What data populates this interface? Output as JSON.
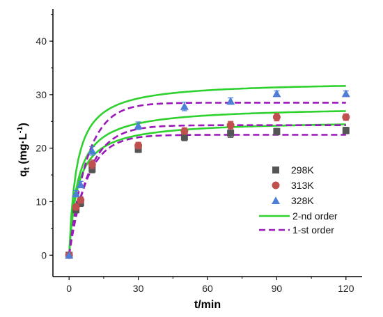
{
  "chart_data": {
    "type": "scatter",
    "xlabel": "t/min",
    "ylabel": {
      "main": "q",
      "sub": "t",
      "unit_pre": " (mg·L",
      "unit_sup": "-1",
      "unit_post": ")"
    },
    "xlim": [
      -7,
      127
    ],
    "ylim": [
      -4,
      46
    ],
    "xticks": [
      0,
      30,
      60,
      90,
      120
    ],
    "yticks": [
      0,
      10,
      20,
      30,
      40
    ],
    "legend_position": "center-right",
    "series": [
      {
        "name": "298K",
        "marker": "square",
        "color": "#555555",
        "x": [
          0,
          3,
          5,
          10,
          30,
          50,
          70,
          90,
          120
        ],
        "y": [
          0,
          8.5,
          9.8,
          16.1,
          19.8,
          22.1,
          22.8,
          23.1,
          23.3
        ],
        "err": [
          0,
          0.6,
          0.7,
          0.7,
          0.6,
          0.7,
          0.8,
          0.6,
          0.6
        ]
      },
      {
        "name": "313K",
        "marker": "circle",
        "color": "#c0504d",
        "x": [
          0,
          3,
          5,
          10,
          30,
          50,
          70,
          90,
          120
        ],
        "y": [
          0,
          9.0,
          10.3,
          17.0,
          20.5,
          23.2,
          24.3,
          25.8,
          25.8
        ],
        "err": [
          0,
          0.5,
          0.6,
          0.8,
          0.6,
          0.6,
          0.7,
          0.7,
          0.6
        ]
      },
      {
        "name": "328K",
        "marker": "triangle",
        "color": "#4f7ed6",
        "x": [
          0,
          3,
          5,
          10,
          30,
          50,
          70,
          90,
          120
        ],
        "y": [
          0,
          11.5,
          13.2,
          19.5,
          24.2,
          27.8,
          28.8,
          30.2,
          30.2
        ],
        "err": [
          0,
          0.6,
          0.6,
          0.8,
          0.7,
          0.8,
          0.6,
          0.5,
          0.5
        ]
      }
    ],
    "fits": [
      {
        "name": "2-nd order",
        "color": "#2ed12e",
        "style": "solid",
        "model": "pso",
        "curves": [
          {
            "qe": 25.2,
            "k": 0.0107
          },
          {
            "qe": 27.8,
            "k": 0.0093
          },
          {
            "qe": 32.5,
            "k": 0.0094
          }
        ]
      },
      {
        "name": "1-st order",
        "color": "#9b19b9",
        "style": "dashed",
        "model": "pfo",
        "curves": [
          {
            "qe": 22.5,
            "k": 0.128
          },
          {
            "qe": 24.3,
            "k": 0.118
          },
          {
            "qe": 28.5,
            "k": 0.128
          }
        ]
      }
    ]
  }
}
